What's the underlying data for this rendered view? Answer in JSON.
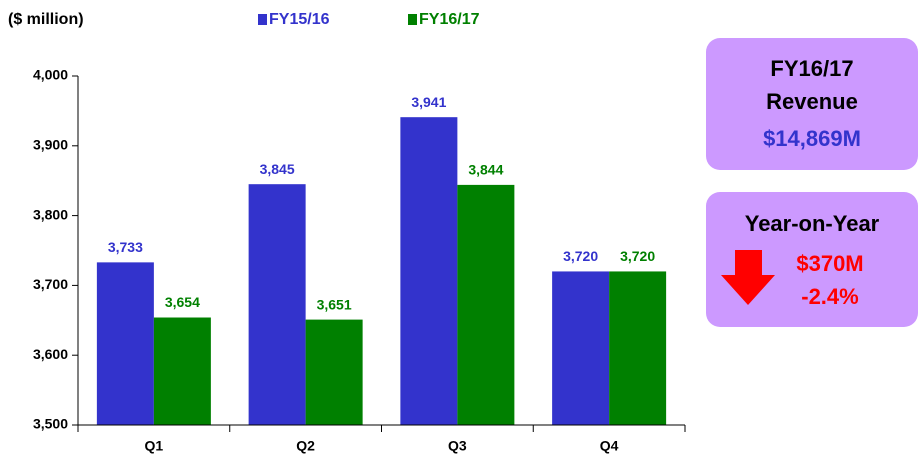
{
  "chart_data": {
    "type": "bar",
    "y_label": "($ million)",
    "categories": [
      "Q1",
      "Q2",
      "Q3",
      "Q4"
    ],
    "series": [
      {
        "name": "FY15/16",
        "color": "#3333cc",
        "values": [
          3733,
          3845,
          3941,
          3720
        ],
        "value_labels": [
          "3,733",
          "3,845",
          "3,941",
          "3,720"
        ]
      },
      {
        "name": "FY16/17",
        "color": "#008000",
        "values": [
          3654,
          3651,
          3844,
          3720
        ],
        "value_labels": [
          "3,654",
          "3,651",
          "3,844",
          "3,720"
        ]
      }
    ],
    "ylim": [
      3500,
      4000
    ],
    "yticks": [
      {
        "value": 3500,
        "label": "3,500"
      },
      {
        "value": 3600,
        "label": "3,600"
      },
      {
        "value": 3700,
        "label": "3,700"
      },
      {
        "value": 3800,
        "label": "3,800"
      },
      {
        "value": 3900,
        "label": "3,900"
      },
      {
        "value": 4000,
        "label": "4,000"
      }
    ],
    "grid": false
  },
  "summary": {
    "revenue": {
      "line1": "FY16/17",
      "line2": "Revenue",
      "amount": "$14,869M"
    },
    "change": {
      "title": "Year-on-Year",
      "amount": "$370M",
      "percent": "-2.4%"
    }
  }
}
